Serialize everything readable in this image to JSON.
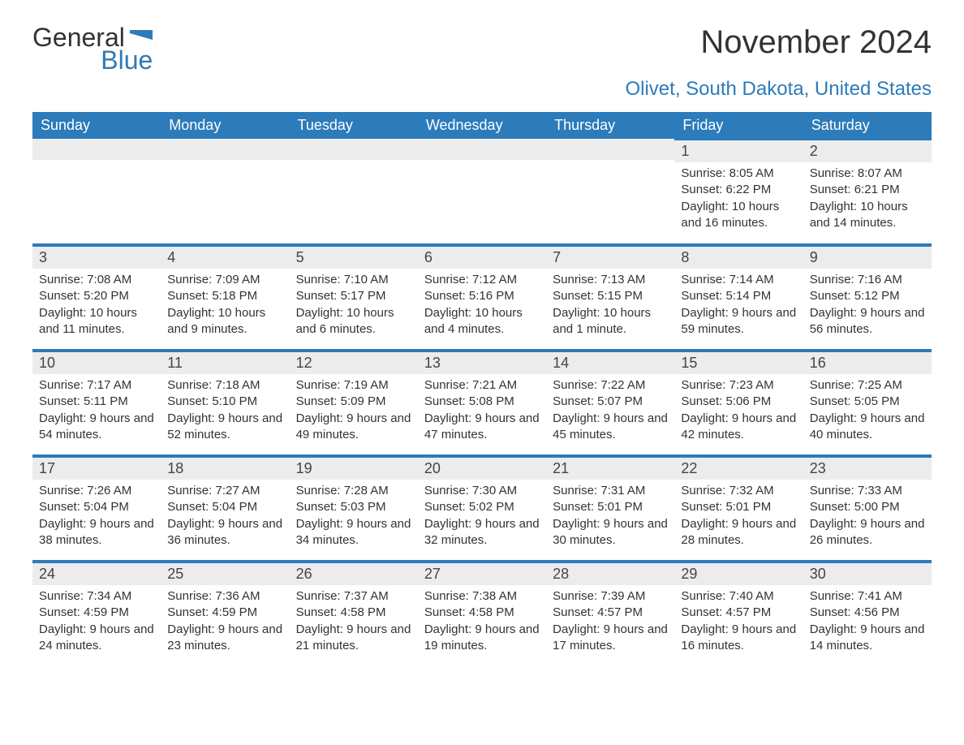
{
  "logo": {
    "text1": "General",
    "text2": "Blue",
    "shape_color": "#2c7bba"
  },
  "title": "November 2024",
  "location": "Olivet, South Dakota, United States",
  "colors": {
    "header_bg": "#2c7bba",
    "header_text": "#ffffff",
    "row_divider": "#2c7bba",
    "daynum_bg": "#ececec",
    "text": "#333333",
    "page_bg": "#ffffff"
  },
  "typography": {
    "title_fontsize": 40,
    "location_fontsize": 24,
    "header_fontsize": 18,
    "daynum_fontsize": 18,
    "content_fontsize": 15
  },
  "columns": [
    "Sunday",
    "Monday",
    "Tuesday",
    "Wednesday",
    "Thursday",
    "Friday",
    "Saturday"
  ],
  "weeks": [
    [
      null,
      null,
      null,
      null,
      null,
      {
        "n": "1",
        "sunrise": "8:05 AM",
        "sunset": "6:22 PM",
        "daylight": "10 hours and 16 minutes."
      },
      {
        "n": "2",
        "sunrise": "8:07 AM",
        "sunset": "6:21 PM",
        "daylight": "10 hours and 14 minutes."
      }
    ],
    [
      {
        "n": "3",
        "sunrise": "7:08 AM",
        "sunset": "5:20 PM",
        "daylight": "10 hours and 11 minutes."
      },
      {
        "n": "4",
        "sunrise": "7:09 AM",
        "sunset": "5:18 PM",
        "daylight": "10 hours and 9 minutes."
      },
      {
        "n": "5",
        "sunrise": "7:10 AM",
        "sunset": "5:17 PM",
        "daylight": "10 hours and 6 minutes."
      },
      {
        "n": "6",
        "sunrise": "7:12 AM",
        "sunset": "5:16 PM",
        "daylight": "10 hours and 4 minutes."
      },
      {
        "n": "7",
        "sunrise": "7:13 AM",
        "sunset": "5:15 PM",
        "daylight": "10 hours and 1 minute."
      },
      {
        "n": "8",
        "sunrise": "7:14 AM",
        "sunset": "5:14 PM",
        "daylight": "9 hours and 59 minutes."
      },
      {
        "n": "9",
        "sunrise": "7:16 AM",
        "sunset": "5:12 PM",
        "daylight": "9 hours and 56 minutes."
      }
    ],
    [
      {
        "n": "10",
        "sunrise": "7:17 AM",
        "sunset": "5:11 PM",
        "daylight": "9 hours and 54 minutes."
      },
      {
        "n": "11",
        "sunrise": "7:18 AM",
        "sunset": "5:10 PM",
        "daylight": "9 hours and 52 minutes."
      },
      {
        "n": "12",
        "sunrise": "7:19 AM",
        "sunset": "5:09 PM",
        "daylight": "9 hours and 49 minutes."
      },
      {
        "n": "13",
        "sunrise": "7:21 AM",
        "sunset": "5:08 PM",
        "daylight": "9 hours and 47 minutes."
      },
      {
        "n": "14",
        "sunrise": "7:22 AM",
        "sunset": "5:07 PM",
        "daylight": "9 hours and 45 minutes."
      },
      {
        "n": "15",
        "sunrise": "7:23 AM",
        "sunset": "5:06 PM",
        "daylight": "9 hours and 42 minutes."
      },
      {
        "n": "16",
        "sunrise": "7:25 AM",
        "sunset": "5:05 PM",
        "daylight": "9 hours and 40 minutes."
      }
    ],
    [
      {
        "n": "17",
        "sunrise": "7:26 AM",
        "sunset": "5:04 PM",
        "daylight": "9 hours and 38 minutes."
      },
      {
        "n": "18",
        "sunrise": "7:27 AM",
        "sunset": "5:04 PM",
        "daylight": "9 hours and 36 minutes."
      },
      {
        "n": "19",
        "sunrise": "7:28 AM",
        "sunset": "5:03 PM",
        "daylight": "9 hours and 34 minutes."
      },
      {
        "n": "20",
        "sunrise": "7:30 AM",
        "sunset": "5:02 PM",
        "daylight": "9 hours and 32 minutes."
      },
      {
        "n": "21",
        "sunrise": "7:31 AM",
        "sunset": "5:01 PM",
        "daylight": "9 hours and 30 minutes."
      },
      {
        "n": "22",
        "sunrise": "7:32 AM",
        "sunset": "5:01 PM",
        "daylight": "9 hours and 28 minutes."
      },
      {
        "n": "23",
        "sunrise": "7:33 AM",
        "sunset": "5:00 PM",
        "daylight": "9 hours and 26 minutes."
      }
    ],
    [
      {
        "n": "24",
        "sunrise": "7:34 AM",
        "sunset": "4:59 PM",
        "daylight": "9 hours and 24 minutes."
      },
      {
        "n": "25",
        "sunrise": "7:36 AM",
        "sunset": "4:59 PM",
        "daylight": "9 hours and 23 minutes."
      },
      {
        "n": "26",
        "sunrise": "7:37 AM",
        "sunset": "4:58 PM",
        "daylight": "9 hours and 21 minutes."
      },
      {
        "n": "27",
        "sunrise": "7:38 AM",
        "sunset": "4:58 PM",
        "daylight": "9 hours and 19 minutes."
      },
      {
        "n": "28",
        "sunrise": "7:39 AM",
        "sunset": "4:57 PM",
        "daylight": "9 hours and 17 minutes."
      },
      {
        "n": "29",
        "sunrise": "7:40 AM",
        "sunset": "4:57 PM",
        "daylight": "9 hours and 16 minutes."
      },
      {
        "n": "30",
        "sunrise": "7:41 AM",
        "sunset": "4:56 PM",
        "daylight": "9 hours and 14 minutes."
      }
    ]
  ],
  "labels": {
    "sunrise": "Sunrise: ",
    "sunset": "Sunset: ",
    "daylight": "Daylight: "
  }
}
